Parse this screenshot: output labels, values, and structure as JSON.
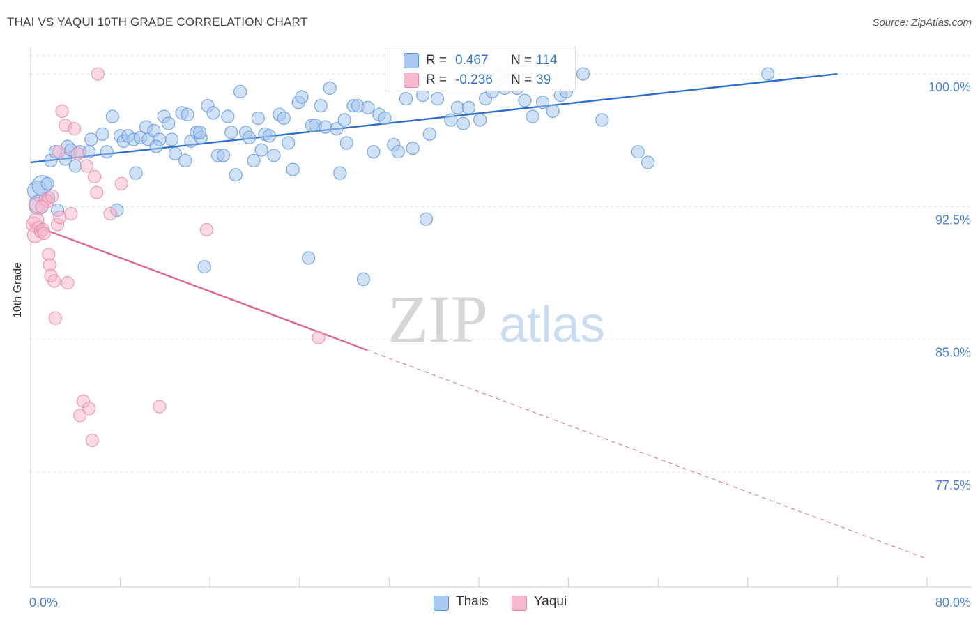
{
  "header": {
    "title": "THAI VS YAQUI 10TH GRADE CORRELATION CHART",
    "source": "Source: ZipAtlas.com"
  },
  "watermark": {
    "zip": "ZIP",
    "atlas": "atlas"
  },
  "colors": {
    "thais_fill": "#a9c8ef",
    "thais_stroke": "#5b93dc",
    "thais_line": "#2f6fcc",
    "yaqui_fill": "#f6b9cc",
    "yaqui_stroke": "#e986a6",
    "yaqui_line": "#e0648f",
    "tick_label": "#4a7fd0"
  },
  "legend": {
    "rows": [
      {
        "r_label": "R =",
        "r_value": "0.467",
        "n_label": "N =",
        "n_value": "114"
      },
      {
        "r_label": "R =",
        "r_value": "-0.236",
        "n_label": "N =",
        "n_value": "39"
      }
    ]
  },
  "bottom_legend": {
    "thais": "Thais",
    "yaqui": "Yaqui"
  },
  "chart_data": {
    "type": "scatter",
    "title": "THAI VS YAQUI 10TH GRADE CORRELATION CHART",
    "xlabel": "",
    "ylabel": "10th Grade",
    "xlim": [
      0,
      80
    ],
    "ylim": [
      71.0,
      101.5
    ],
    "x_tick_labels": [
      "0.0%",
      "80.0%"
    ],
    "y_ticks": [
      77.5,
      85.0,
      92.5,
      100.0
    ],
    "y_tick_labels": [
      "77.5%",
      "85.0%",
      "92.5%",
      "100.0%"
    ],
    "grid": true,
    "legend_position": "top-center",
    "series": [
      {
        "name": "Thais",
        "points": [
          [
            0.6,
            93.4
          ],
          [
            0.7,
            92.6
          ],
          [
            1.0,
            93.7
          ],
          [
            1.5,
            93.8
          ],
          [
            1.6,
            93.0
          ],
          [
            1.8,
            95.1
          ],
          [
            2.2,
            95.6
          ],
          [
            2.4,
            92.3
          ],
          [
            3.1,
            95.2
          ],
          [
            3.3,
            95.9
          ],
          [
            3.6,
            95.7
          ],
          [
            4.0,
            94.8
          ],
          [
            4.4,
            95.6
          ],
          [
            5.2,
            95.6
          ],
          [
            5.4,
            96.3
          ],
          [
            6.4,
            96.6
          ],
          [
            6.8,
            95.6
          ],
          [
            7.3,
            97.6
          ],
          [
            7.7,
            92.3
          ],
          [
            8.0,
            96.5
          ],
          [
            8.3,
            96.2
          ],
          [
            8.7,
            96.5
          ],
          [
            9.2,
            96.3
          ],
          [
            9.4,
            94.4
          ],
          [
            9.8,
            96.4
          ],
          [
            10.3,
            97.0
          ],
          [
            10.5,
            96.3
          ],
          [
            11.0,
            96.8
          ],
          [
            11.5,
            96.3
          ],
          [
            11.9,
            97.6
          ],
          [
            12.3,
            97.2
          ],
          [
            12.6,
            96.3
          ],
          [
            12.9,
            95.5
          ],
          [
            13.5,
            97.8
          ],
          [
            13.8,
            95.1
          ],
          [
            14.0,
            97.7
          ],
          [
            14.3,
            96.2
          ],
          [
            14.8,
            96.7
          ],
          [
            15.2,
            96.4
          ],
          [
            15.5,
            89.1
          ],
          [
            15.8,
            98.2
          ],
          [
            16.3,
            97.8
          ],
          [
            16.7,
            95.4
          ],
          [
            17.2,
            95.4
          ],
          [
            17.6,
            97.6
          ],
          [
            17.9,
            96.7
          ],
          [
            18.3,
            94.3
          ],
          [
            18.7,
            99.0
          ],
          [
            19.2,
            96.7
          ],
          [
            19.5,
            96.4
          ],
          [
            19.9,
            95.1
          ],
          [
            20.3,
            97.5
          ],
          [
            20.6,
            95.7
          ],
          [
            20.9,
            96.6
          ],
          [
            21.3,
            96.5
          ],
          [
            21.7,
            95.4
          ],
          [
            22.2,
            97.7
          ],
          [
            22.6,
            97.5
          ],
          [
            23.0,
            96.1
          ],
          [
            23.4,
            94.6
          ],
          [
            23.9,
            98.4
          ],
          [
            24.2,
            98.7
          ],
          [
            24.8,
            89.6
          ],
          [
            25.1,
            97.1
          ],
          [
            25.4,
            97.1
          ],
          [
            25.9,
            98.2
          ],
          [
            26.3,
            97.0
          ],
          [
            26.7,
            99.2
          ],
          [
            27.3,
            96.9
          ],
          [
            27.6,
            94.4
          ],
          [
            28.0,
            97.4
          ],
          [
            28.2,
            96.1
          ],
          [
            28.8,
            98.2
          ],
          [
            29.2,
            98.2
          ],
          [
            29.7,
            88.4
          ],
          [
            30.1,
            98.1
          ],
          [
            30.6,
            95.6
          ],
          [
            31.1,
            97.7
          ],
          [
            31.6,
            97.5
          ],
          [
            32.4,
            96.0
          ],
          [
            32.8,
            95.6
          ],
          [
            33.5,
            98.6
          ],
          [
            34.1,
            95.8
          ],
          [
            34.6,
            100.0
          ],
          [
            35.0,
            98.8
          ],
          [
            35.3,
            91.8
          ],
          [
            35.6,
            96.6
          ],
          [
            36.3,
            98.6
          ],
          [
            36.8,
            99.4
          ],
          [
            37.5,
            97.4
          ],
          [
            38.1,
            98.1
          ],
          [
            38.6,
            97.2
          ],
          [
            39.1,
            98.1
          ],
          [
            39.6,
            100.0
          ],
          [
            40.1,
            97.4
          ],
          [
            40.6,
            98.6
          ],
          [
            41.2,
            99.0
          ],
          [
            41.8,
            100.0
          ],
          [
            42.3,
            99.2
          ],
          [
            42.8,
            99.9
          ],
          [
            43.4,
            99.2
          ],
          [
            44.1,
            98.5
          ],
          [
            44.8,
            97.6
          ],
          [
            45.7,
            98.4
          ],
          [
            46.6,
            97.9
          ],
          [
            47.3,
            98.8
          ],
          [
            47.8,
            99.0
          ],
          [
            49.3,
            100.0
          ],
          [
            51.0,
            97.4
          ],
          [
            54.2,
            95.6
          ],
          [
            55.1,
            95.0
          ],
          [
            65.8,
            100.0
          ],
          [
            15.1,
            96.7
          ],
          [
            11.2,
            95.9
          ]
        ]
      },
      {
        "name": "Yaqui",
        "points": [
          [
            0.3,
            91.5
          ],
          [
            0.4,
            90.9
          ],
          [
            0.5,
            91.7
          ],
          [
            0.6,
            92.6
          ],
          [
            0.7,
            91.3
          ],
          [
            0.9,
            91.1
          ],
          [
            1.1,
            91.2
          ],
          [
            1.2,
            91.0
          ],
          [
            1.3,
            92.9
          ],
          [
            1.5,
            92.8
          ],
          [
            1.6,
            89.8
          ],
          [
            1.7,
            89.2
          ],
          [
            1.8,
            88.6
          ],
          [
            1.9,
            93.1
          ],
          [
            2.1,
            88.3
          ],
          [
            2.2,
            86.2
          ],
          [
            2.4,
            91.5
          ],
          [
            2.6,
            91.9
          ],
          [
            2.8,
            97.9
          ],
          [
            3.1,
            97.1
          ],
          [
            3.3,
            88.2
          ],
          [
            3.6,
            92.1
          ],
          [
            3.9,
            96.9
          ],
          [
            4.2,
            95.5
          ],
          [
            4.4,
            80.7
          ],
          [
            4.7,
            81.5
          ],
          [
            5.0,
            94.8
          ],
          [
            5.2,
            81.1
          ],
          [
            5.5,
            79.3
          ],
          [
            5.7,
            94.2
          ],
          [
            5.9,
            93.3
          ],
          [
            6.0,
            100.0
          ],
          [
            7.1,
            92.1
          ],
          [
            8.1,
            93.8
          ],
          [
            11.5,
            81.2
          ],
          [
            15.7,
            91.2
          ],
          [
            25.7,
            85.1
          ],
          [
            2.5,
            95.6
          ],
          [
            1.0,
            92.5
          ]
        ]
      }
    ],
    "trendlines": [
      {
        "series": "Thais",
        "x": [
          0,
          72.0
        ],
        "y": [
          95.0,
          100.0
        ],
        "style": "solid"
      },
      {
        "series": "Yaqui",
        "x": [
          0,
          30.0
        ],
        "y": [
          91.5,
          84.4
        ],
        "style": "solid"
      },
      {
        "series": "Yaqui",
        "x": [
          30.0,
          80.0
        ],
        "y": [
          84.4,
          72.6
        ],
        "style": "dashed"
      }
    ]
  }
}
